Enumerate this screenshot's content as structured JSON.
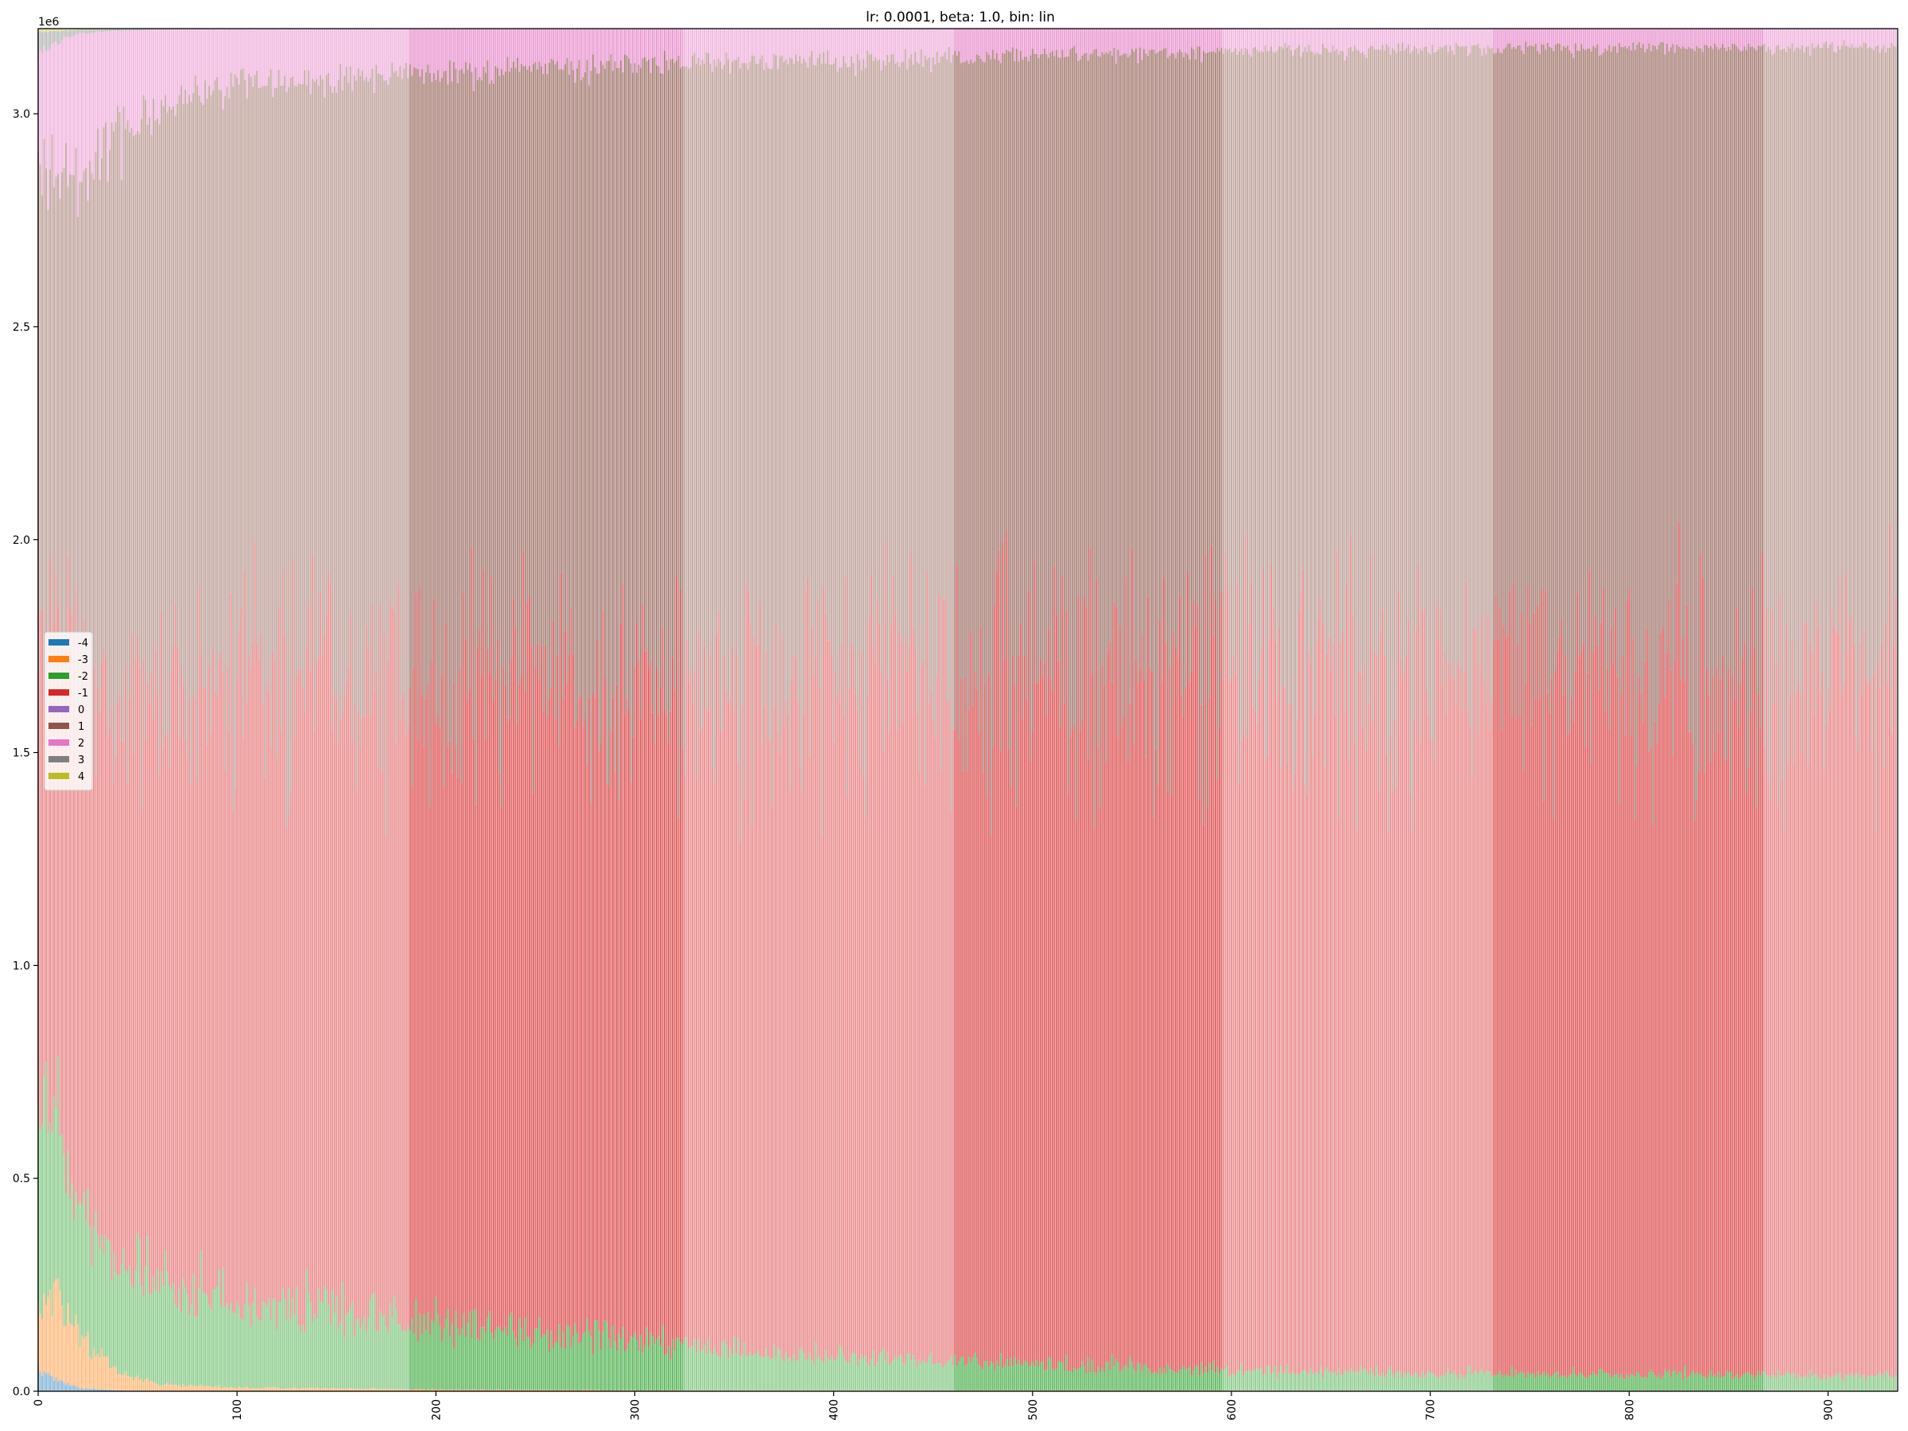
{
  "chart_data": {
    "type": "bar",
    "stacked": true,
    "title": "lr: 0.0001, beta: 1.0, bin: lin",
    "xlabel": "",
    "ylabel": "",
    "y_offset_label": "1e6",
    "xlim": [
      0,
      935
    ],
    "ylim": [
      0,
      3200000
    ],
    "x_ticks": [
      0,
      100,
      200,
      300,
      400,
      500,
      600,
      700,
      800,
      900
    ],
    "x_tick_labels": [
      "0",
      "100",
      "200",
      "300",
      "400",
      "500",
      "600",
      "700",
      "800",
      "900"
    ],
    "x_tick_rotation": 90,
    "y_ticks": [
      0,
      500000,
      1000000,
      1500000,
      2000000,
      2500000,
      3000000
    ],
    "y_tick_labels": [
      "0.0",
      "0.5",
      "1.0",
      "1.5",
      "2.0",
      "2.5",
      "3.0"
    ],
    "grid": false,
    "legend": "center-left",
    "total_per_bar": 3200000,
    "bar_count": 935,
    "description_of_shading": "bars alternate between solid and light shading in blocks",
    "shade_blocks": [
      {
        "from": 0,
        "to": 52,
        "shade": "light"
      },
      {
        "from": 52,
        "to": 187,
        "shade": "light"
      },
      {
        "from": 187,
        "to": 325,
        "shade": "solid"
      },
      {
        "from": 325,
        "to": 461,
        "shade": "light"
      },
      {
        "from": 461,
        "to": 596,
        "shade": "solid"
      },
      {
        "from": 596,
        "to": 732,
        "shade": "light"
      },
      {
        "from": 732,
        "to": 868,
        "shade": "solid"
      },
      {
        "from": 868,
        "to": 935,
        "shade": "light"
      }
    ],
    "series": [
      {
        "name": "-4",
        "color": "#1f77b4",
        "key_points": [
          [
            0,
            50000
          ],
          [
            10,
            25000
          ],
          [
            20,
            8000
          ],
          [
            40,
            2000
          ],
          [
            60,
            0
          ],
          [
            935,
            0
          ]
        ]
      },
      {
        "name": "-3",
        "color": "#ff7f0e",
        "key_points": [
          [
            0,
            150000
          ],
          [
            10,
            190000
          ],
          [
            20,
            120000
          ],
          [
            40,
            40000
          ],
          [
            60,
            15000
          ],
          [
            100,
            8000
          ],
          [
            200,
            4000
          ],
          [
            300,
            2000
          ],
          [
            935,
            1000
          ]
        ]
      },
      {
        "name": "-2",
        "color": "#2ca02c",
        "key_points": [
          [
            0,
            450000
          ],
          [
            10,
            400000
          ],
          [
            20,
            300000
          ],
          [
            40,
            250000
          ],
          [
            60,
            230000
          ],
          [
            100,
            190000
          ],
          [
            150,
            170000
          ],
          [
            200,
            150000
          ],
          [
            300,
            110000
          ],
          [
            400,
            75000
          ],
          [
            500,
            60000
          ],
          [
            600,
            45000
          ],
          [
            700,
            40000
          ],
          [
            800,
            38000
          ],
          [
            935,
            35000
          ]
        ]
      },
      {
        "name": "-1",
        "color": "#d62728",
        "key_points": [
          [
            0,
            1080000
          ],
          [
            10,
            1100000
          ],
          [
            20,
            1190000
          ],
          [
            40,
            1250000
          ],
          [
            60,
            1310000
          ],
          [
            100,
            1400000
          ],
          [
            200,
            1430000
          ],
          [
            300,
            1470000
          ],
          [
            400,
            1520000
          ],
          [
            500,
            1580000
          ],
          [
            600,
            1590000
          ],
          [
            700,
            1600000
          ],
          [
            800,
            1610000
          ],
          [
            935,
            1620000
          ]
        ]
      },
      {
        "name": "0",
        "color": "#9467bd",
        "key_points": [
          [
            0,
            0
          ],
          [
            935,
            0
          ]
        ]
      },
      {
        "name": "1",
        "color": "#8c564b",
        "key_points": [
          [
            0,
            1150000
          ],
          [
            10,
            1100000
          ],
          [
            20,
            1150000
          ],
          [
            40,
            1250000
          ],
          [
            60,
            1300000
          ],
          [
            100,
            1320000
          ],
          [
            200,
            1370000
          ],
          [
            300,
            1440000
          ],
          [
            400,
            1430000
          ],
          [
            500,
            1420000
          ],
          [
            600,
            1470000
          ],
          [
            700,
            1470000
          ],
          [
            800,
            1480000
          ],
          [
            935,
            1490000
          ]
        ]
      },
      {
        "name": "2",
        "color": "#e377c2",
        "key_points": [
          [
            0,
            250000
          ],
          [
            10,
            310000
          ],
          [
            20,
            320000
          ],
          [
            40,
            240000
          ],
          [
            60,
            170000
          ],
          [
            100,
            120000
          ],
          [
            200,
            100000
          ],
          [
            300,
            75000
          ],
          [
            400,
            70000
          ],
          [
            500,
            60000
          ],
          [
            600,
            50000
          ],
          [
            700,
            46000
          ],
          [
            800,
            44000
          ],
          [
            935,
            42000
          ]
        ]
      },
      {
        "name": "3",
        "color": "#7f7f7f",
        "key_points": [
          [
            0,
            50000
          ],
          [
            10,
            25000
          ],
          [
            20,
            10000
          ],
          [
            40,
            4000
          ],
          [
            60,
            2000
          ],
          [
            100,
            1000
          ],
          [
            935,
            300
          ]
        ]
      },
      {
        "name": "4",
        "color": "#bcbd22",
        "key_points": [
          [
            0,
            8000
          ],
          [
            20,
            2000
          ],
          [
            60,
            300
          ],
          [
            935,
            100
          ]
        ]
      }
    ]
  }
}
